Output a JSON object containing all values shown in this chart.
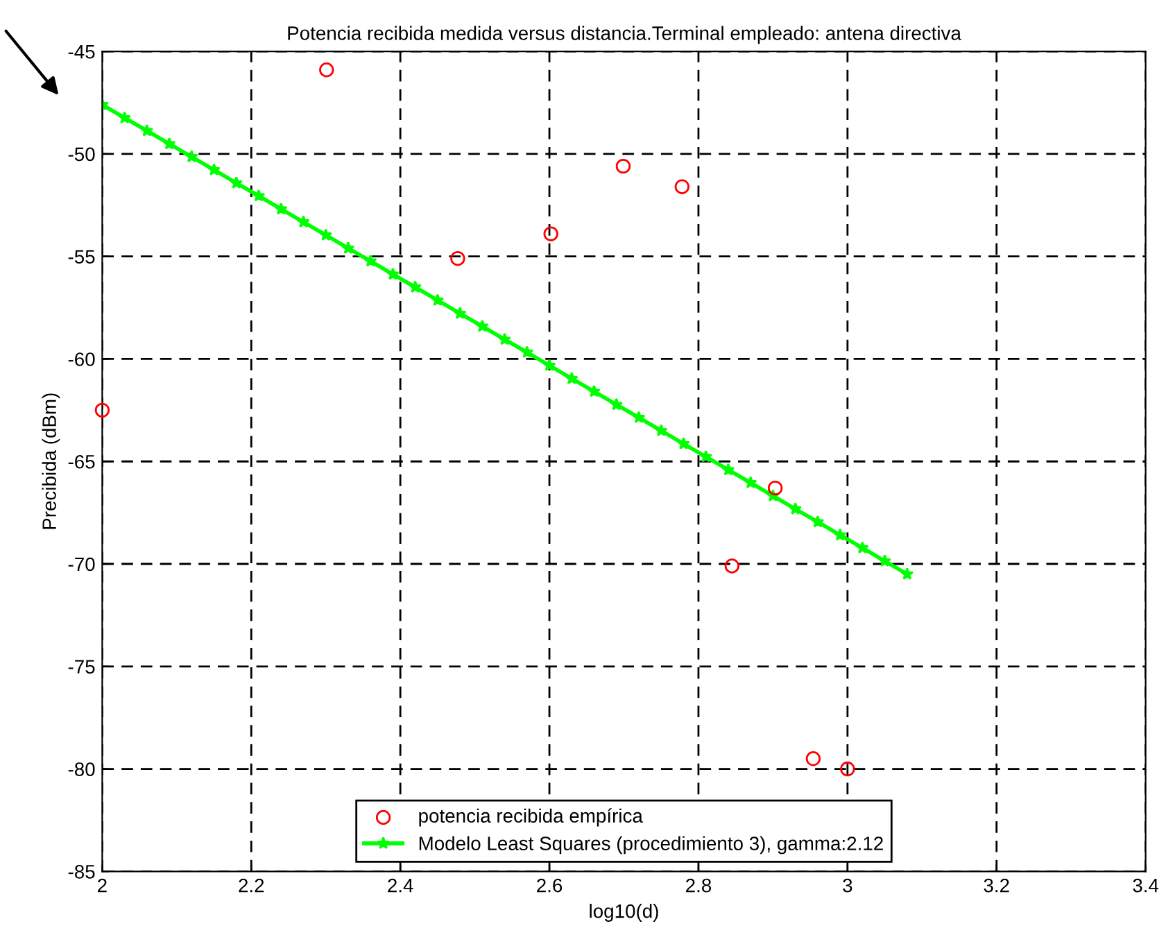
{
  "chart_data": {
    "type": "scatter",
    "title": "Potencia recibida medida versus distancia.Terminal empleado: antena directiva",
    "xlabel": "log10(d)",
    "ylabel": "Precibida (dBm)",
    "xlim": [
      2,
      3.4
    ],
    "xticks": [
      2,
      2.2,
      2.4,
      2.6,
      2.8,
      3,
      3.2,
      3.4
    ],
    "ylim": [
      -85,
      -45
    ],
    "yticks": [
      -85,
      -80,
      -75,
      -70,
      -65,
      -60,
      -55,
      -50,
      -45
    ],
    "grid": true,
    "legend": "bottom",
    "series": [
      {
        "name": "potencia recibida empírica",
        "marker": "circle",
        "color": "#ff0000",
        "x": [
          2.0,
          2.301,
          2.477,
          2.602,
          2.699,
          2.778,
          2.845,
          2.903,
          2.954,
          3.0
        ],
        "values": [
          -62.5,
          -45.9,
          -55.1,
          -53.9,
          -50.6,
          -51.6,
          -70.1,
          -66.3,
          -79.5,
          -80.0
        ]
      },
      {
        "name": "Modelo Least Squares (procedimiento 3), gamma:2.12",
        "type": "line",
        "marker": "star",
        "line_style": "solid",
        "color": "#00ff00",
        "x": [
          2.0,
          2.03,
          2.06,
          2.09,
          2.12,
          2.15,
          2.18,
          2.21,
          2.24,
          2.27,
          2.3,
          2.33,
          2.36,
          2.39,
          2.42,
          2.45,
          2.48,
          2.51,
          2.54,
          2.57,
          2.6,
          2.63,
          2.66,
          2.69,
          2.72,
          2.75,
          2.78,
          2.81,
          2.84,
          2.87,
          2.9,
          2.93,
          2.96,
          2.99,
          3.02,
          3.05,
          3.08
        ],
        "values": [
          -47.6,
          -48.24,
          -48.87,
          -49.51,
          -50.14,
          -50.78,
          -51.42,
          -52.05,
          -52.69,
          -53.32,
          -53.96,
          -54.6,
          -55.23,
          -55.87,
          -56.5,
          -57.14,
          -57.78,
          -58.41,
          -59.05,
          -59.68,
          -60.32,
          -60.96,
          -61.59,
          -62.23,
          -62.86,
          -63.5,
          -64.14,
          -64.77,
          -65.41,
          -66.04,
          -66.68,
          -67.32,
          -67.95,
          -68.59,
          -69.22,
          -69.86,
          -70.5
        ]
      }
    ]
  }
}
